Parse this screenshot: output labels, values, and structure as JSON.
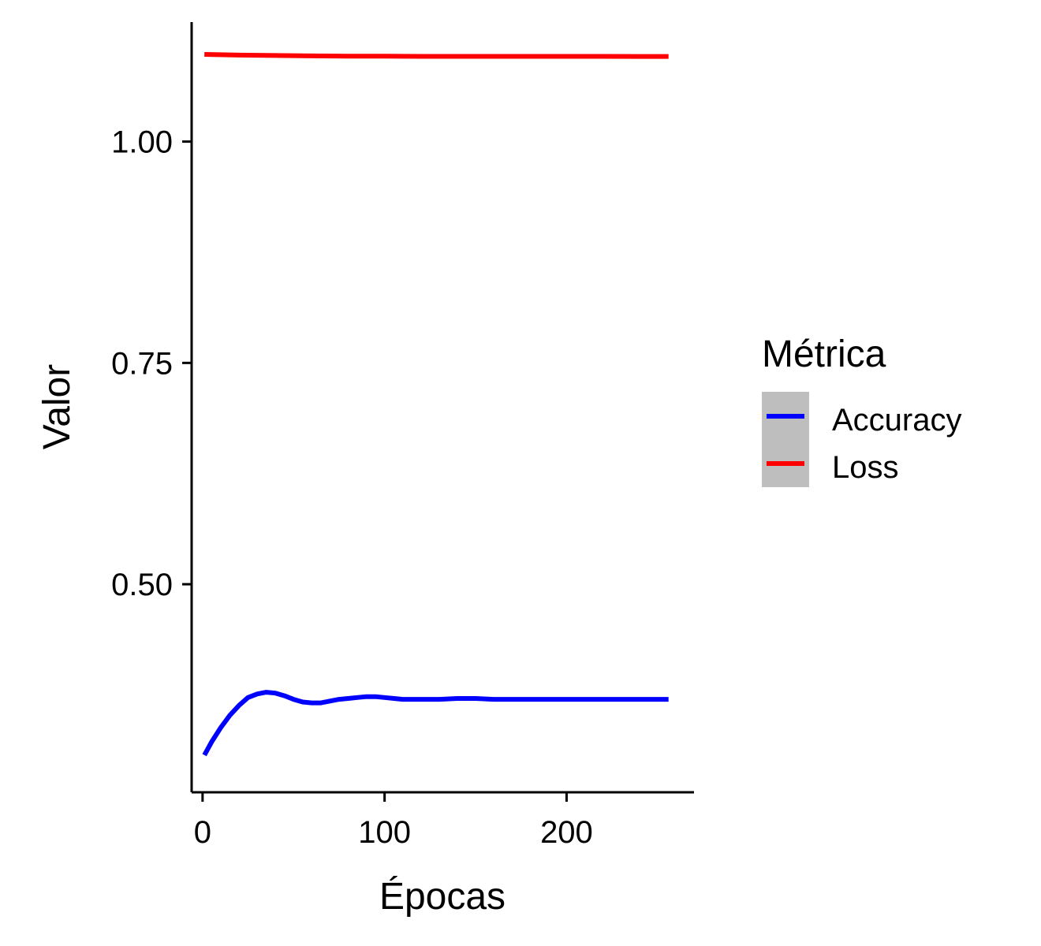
{
  "chart_data": {
    "type": "line",
    "xlabel": "Épocas",
    "ylabel": "Valor",
    "xlim": [
      -6,
      270
    ],
    "ylim": [
      0.265,
      1.135
    ],
    "xticks": [
      0,
      100,
      200
    ],
    "yticks": [
      0.5,
      0.75,
      1.0
    ],
    "xtick_labels": [
      "0",
      "100",
      "200"
    ],
    "ytick_labels": [
      "0.50",
      "0.75",
      "1.00"
    ],
    "grid": false,
    "legend": {
      "title": "Métrica",
      "position": "right",
      "key_background": "#bebebe",
      "entries": [
        "Accuracy",
        "Loss"
      ]
    },
    "series": [
      {
        "name": "Accuracy",
        "color": "#0000ff",
        "x": [
          1,
          5,
          10,
          15,
          20,
          25,
          30,
          35,
          40,
          45,
          50,
          55,
          60,
          65,
          70,
          75,
          80,
          85,
          90,
          95,
          100,
          110,
          120,
          130,
          140,
          150,
          160,
          180,
          200,
          220,
          240,
          256
        ],
        "y": [
          0.307,
          0.322,
          0.338,
          0.352,
          0.363,
          0.372,
          0.376,
          0.378,
          0.377,
          0.374,
          0.37,
          0.367,
          0.366,
          0.366,
          0.368,
          0.37,
          0.371,
          0.372,
          0.373,
          0.373,
          0.372,
          0.37,
          0.37,
          0.37,
          0.371,
          0.371,
          0.37,
          0.37,
          0.37,
          0.37,
          0.37,
          0.37
        ]
      },
      {
        "name": "Loss",
        "color": "#ff0000",
        "x": [
          1,
          20,
          40,
          60,
          80,
          100,
          120,
          140,
          160,
          180,
          200,
          220,
          240,
          256
        ],
        "y": [
          1.0985,
          1.0977,
          1.0972,
          1.0968,
          1.0965,
          1.0964,
          1.0963,
          1.0963,
          1.0963,
          1.0963,
          1.0963,
          1.0963,
          1.0962,
          1.0962
        ]
      }
    ]
  }
}
